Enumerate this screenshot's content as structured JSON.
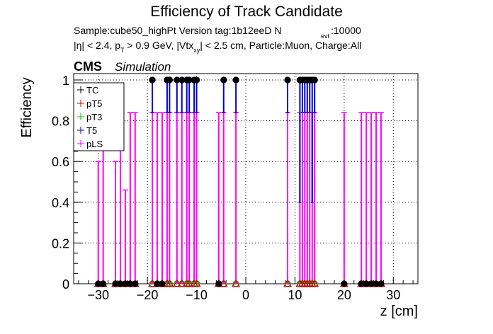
{
  "chart_data": {
    "type": "scatter",
    "title": "Efficiency of Track Candidate",
    "subtitle_line1": "Sample:cube50_highPt   Version tag:1b12eeD  N",
    "subtitle_line1_sub": "evt",
    "subtitle_line1_tail": ":10000",
    "subtitle_line2_a": "|η| < 2.4, p",
    "subtitle_line2_sub_a": "T",
    "subtitle_line2_b": " > 0.9 GeV, |Vtx",
    "subtitle_line2_sub_b": "xy",
    "subtitle_line2_c": "| < 2.5 cm, Particle:Muon, Charge:All",
    "cms_label": "CMS",
    "simulation_label": "Simulation",
    "xlabel": "z [cm]",
    "ylabel": "Efficiency",
    "xlim": [
      -35,
      35
    ],
    "ylim": [
      0,
      1.02
    ],
    "xticks": [
      -30,
      -20,
      -10,
      0,
      10,
      20,
      30
    ],
    "xtick_labels": [
      "−30",
      "−20",
      "−10",
      "0",
      "10",
      "20",
      "30"
    ],
    "yticks": [
      0,
      0.2,
      0.4,
      0.6,
      0.8,
      1
    ],
    "ytick_labels": [
      "0",
      "0.2",
      "0.4",
      "0.6",
      "0.8",
      "1"
    ],
    "grid": true,
    "legend_position": "top-left",
    "series": [
      {
        "name": "TC",
        "color": "#000000",
        "marker": "filled-circle",
        "x": [
          -30,
          -29,
          -26.5,
          -25.5,
          -24.5,
          -23.5,
          -22.5,
          -19,
          -18,
          -17,
          -16,
          -15.5,
          -14,
          -13,
          -12,
          -11.5,
          -10.5,
          -10,
          -5.5,
          -4.5,
          -2,
          8.5,
          11,
          11.5,
          12,
          12.5,
          13,
          13.5,
          14,
          20,
          23.5,
          24.5,
          25.5,
          26.5,
          27.5
        ],
        "y": [
          0,
          0,
          0,
          0,
          0,
          0,
          0,
          1,
          0,
          0,
          1,
          1,
          1,
          1,
          1,
          1,
          1,
          1,
          0,
          1,
          1,
          1,
          1,
          1,
          1,
          1,
          1,
          1,
          1,
          0,
          0,
          0,
          0,
          0,
          0
        ]
      },
      {
        "name": "pT5",
        "color": "#cc0000",
        "marker": "open-triangle",
        "x": [
          -30,
          -29,
          -26.5,
          -25.5,
          -24.5,
          -23.5,
          -22.5,
          -19,
          -18,
          -17,
          -16,
          -15.5,
          -14,
          -13,
          -12,
          -11.5,
          -10.5,
          -10,
          -5.5,
          -4.5,
          -2,
          8.5,
          11,
          11.5,
          12,
          12.5,
          13,
          13.5,
          14,
          20,
          23.5,
          24.5,
          25.5,
          26.5,
          27.5
        ],
        "y": [
          0,
          0,
          0,
          0,
          0,
          0,
          0,
          0,
          0,
          0,
          0,
          0,
          0,
          0,
          0,
          0,
          0,
          0,
          0,
          0,
          0,
          0,
          0,
          0,
          0,
          0,
          0,
          0,
          0,
          0,
          0,
          0,
          0,
          0,
          0
        ]
      },
      {
        "name": "pT3",
        "color": "#00bb00",
        "marker": "open-circle",
        "x": [
          -30,
          -29,
          -26.5,
          -25.5,
          -24.5,
          -23.5,
          -22.5,
          -19,
          -18,
          -17,
          -16,
          -15.5,
          -14,
          -13,
          -12,
          -11.5,
          -10.5,
          -10,
          -5.5,
          -4.5,
          -2,
          8.5,
          11,
          11.5,
          12,
          12.5,
          13,
          13.5,
          14,
          20,
          23.5,
          24.5,
          25.5,
          26.5,
          27.5
        ],
        "y": [
          0,
          0,
          0,
          0,
          0,
          0,
          0,
          0,
          0,
          0,
          0,
          0,
          0,
          0,
          0,
          0,
          0,
          0,
          0,
          0,
          0,
          0,
          0,
          0,
          0,
          0,
          0,
          0,
          0,
          0,
          0,
          0,
          0,
          0,
          0
        ]
      },
      {
        "name": "T5",
        "color": "#0000cc",
        "marker": "open-circle",
        "x": [
          -19,
          -16,
          -15.5,
          -14,
          -13,
          -12,
          -11.5,
          -10.5,
          -10,
          -4.5,
          -2,
          8.5,
          11,
          11.5,
          12,
          12.5,
          13,
          13.5,
          14
        ],
        "y": [
          1,
          1,
          1,
          1,
          1,
          1,
          1,
          1,
          1,
          1,
          1,
          1,
          1,
          1,
          1,
          1,
          1,
          1,
          1
        ],
        "err_low": [
          0.84,
          0.84,
          0.84,
          0.84,
          0.84,
          0.84,
          0.84,
          0.84,
          0.84,
          0.84,
          0.84,
          0.84,
          0.4,
          0.84,
          0.84,
          0.84,
          0.84,
          0.4,
          0.84
        ]
      },
      {
        "name": "pLS",
        "color": "#ff00ff",
        "marker": "open-circle",
        "x": [
          -30,
          -29,
          -26.5,
          -25.5,
          -24.5,
          -23.5,
          -22.5,
          -19,
          -18,
          -17,
          -16,
          -15.5,
          -14,
          -13,
          -12,
          -11.5,
          -10.5,
          -10,
          -5.5,
          -4.5,
          -2,
          8.5,
          11,
          11.5,
          12,
          12.5,
          13,
          13.5,
          14,
          20,
          23.5,
          24.5,
          25.5,
          26.5,
          27.5
        ],
        "y": [
          0,
          0,
          0,
          0,
          0,
          0,
          0,
          0,
          0,
          0,
          0,
          0,
          0,
          0,
          0,
          0,
          0,
          0,
          0,
          0,
          0,
          0,
          0,
          0,
          0,
          0,
          0,
          0,
          0,
          0,
          0,
          0,
          0,
          0,
          0
        ],
        "err_high": [
          0.6,
          0.84,
          0.6,
          0.84,
          0.46,
          0.84,
          0.84,
          0.84,
          0.84,
          0.84,
          0.84,
          0.84,
          0.84,
          0.84,
          0.84,
          0.84,
          0.84,
          0.84,
          0.84,
          0.84,
          0.84,
          0.84,
          0.84,
          0.84,
          0.84,
          0.84,
          0.84,
          0.84,
          0.84,
          0.84,
          0.84,
          0.84,
          0.84,
          0.84,
          0.84
        ]
      }
    ]
  }
}
